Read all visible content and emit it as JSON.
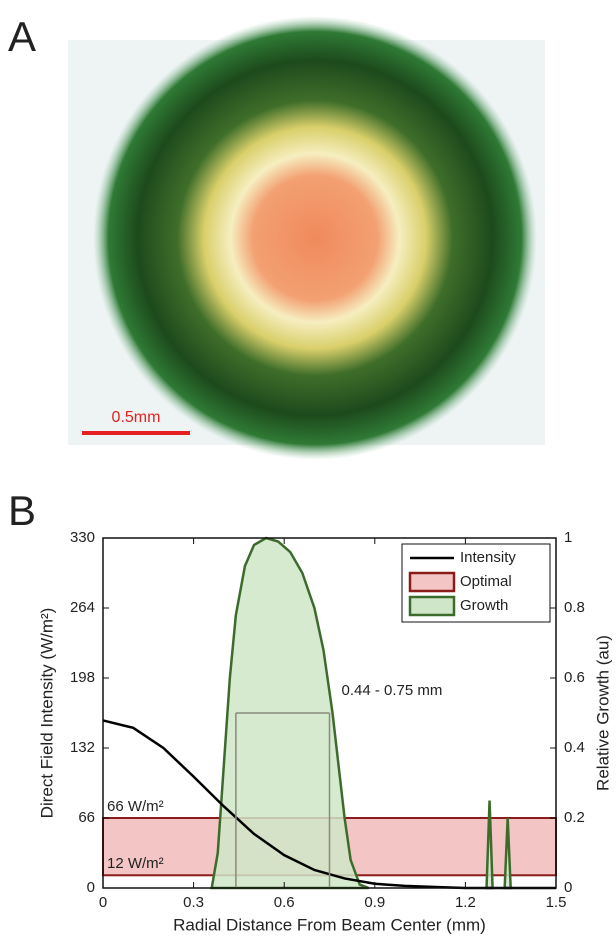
{
  "panels": {
    "a_label": "A",
    "b_label": "B"
  },
  "image": {
    "scale_bar_label": "0.5mm"
  },
  "chart_data": {
    "type": "line",
    "xlabel": "Radial Distance From Beam Center (mm)",
    "ylabel": "Direct Field Intensity (W/m²)",
    "y2label": "Relative Growth (au)",
    "xlim": [
      0,
      1.5
    ],
    "xticks": [
      0,
      0.3,
      0.6,
      0.9,
      1.2,
      1.5
    ],
    "ylim": [
      0,
      330
    ],
    "yticks": [
      0,
      66,
      132,
      198,
      264,
      330
    ],
    "y2lim": [
      0,
      1
    ],
    "y2ticks": [
      0,
      0.2,
      0.4,
      0.6,
      0.8,
      1
    ],
    "legend": "upper right",
    "series": [
      {
        "name": "Intensity",
        "color": "#000000",
        "type": "line",
        "x": [
          0,
          0.1,
          0.2,
          0.3,
          0.4,
          0.5,
          0.6,
          0.7,
          0.8,
          0.9,
          1.0,
          1.1,
          1.2,
          1.3,
          1.4,
          1.5
        ],
        "values": [
          158,
          151,
          132,
          105,
          77,
          51,
          31,
          17,
          9,
          4,
          2,
          1,
          0,
          0,
          0,
          0
        ]
      },
      {
        "name": "Optimal",
        "color": "#f3c5c5",
        "edge_color": "#8b1c1c",
        "type": "band",
        "values": [
          12,
          66
        ],
        "value_labels": [
          "12 W/m²",
          "66 W/m²"
        ]
      },
      {
        "name": "Growth",
        "color": "#cfe6c8",
        "edge_color": "#3d6b2c",
        "type": "area",
        "axis": "y2",
        "x": [
          0.36,
          0.38,
          0.4,
          0.42,
          0.44,
          0.47,
          0.5,
          0.54,
          0.58,
          0.62,
          0.66,
          0.7,
          0.73,
          0.76,
          0.78,
          0.8,
          0.82,
          0.85,
          0.88,
          1.0,
          1.27,
          1.28,
          1.29,
          1.3,
          1.33,
          1.34,
          1.35
        ],
        "values": [
          0,
          0.1,
          0.35,
          0.6,
          0.78,
          0.92,
          0.98,
          1.0,
          0.99,
          0.96,
          0.9,
          0.8,
          0.68,
          0.5,
          0.35,
          0.2,
          0.08,
          0.01,
          0,
          null,
          0,
          0.25,
          0,
          null,
          0,
          0.2,
          0
        ]
      }
    ],
    "range_marker": {
      "x": [
        0.44,
        0.75
      ],
      "y": 0.5,
      "axis": "y2",
      "label": "0.44 - 0.75 mm",
      "color": "#8a8a7a"
    }
  }
}
